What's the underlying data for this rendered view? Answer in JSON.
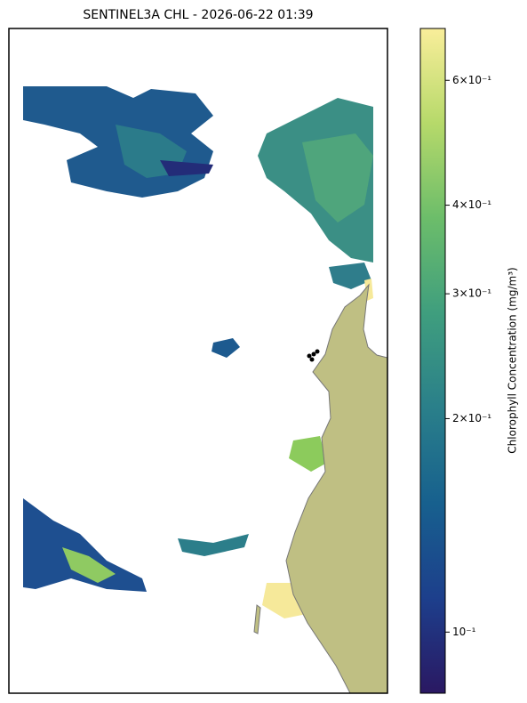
{
  "chart_data": {
    "type": "map",
    "title": "SENTINEL3A CHL - 2026-06-22 01:39",
    "land_color": "#bfbf83",
    "colorbar": {
      "label": "Chlorophyll Concentration (mg/m³)",
      "log": true,
      "lim": [
        0.082,
        0.71
      ],
      "ticks": [
        {
          "value": 0.1,
          "label": "10⁻¹"
        },
        {
          "value": 0.2,
          "label": "2×10⁻¹"
        },
        {
          "value": 0.3,
          "label": "3×10⁻¹"
        },
        {
          "value": 0.4,
          "label": "4×10⁻¹"
        },
        {
          "value": 0.6,
          "label": "6×10⁻¹"
        }
      ],
      "colors": [
        "#2a1862",
        "#1d3f8c",
        "#17608e",
        "#2a7f8a",
        "#3f9e7e",
        "#6cbd6a",
        "#b6d96a",
        "#f9ee9a"
      ]
    }
  }
}
